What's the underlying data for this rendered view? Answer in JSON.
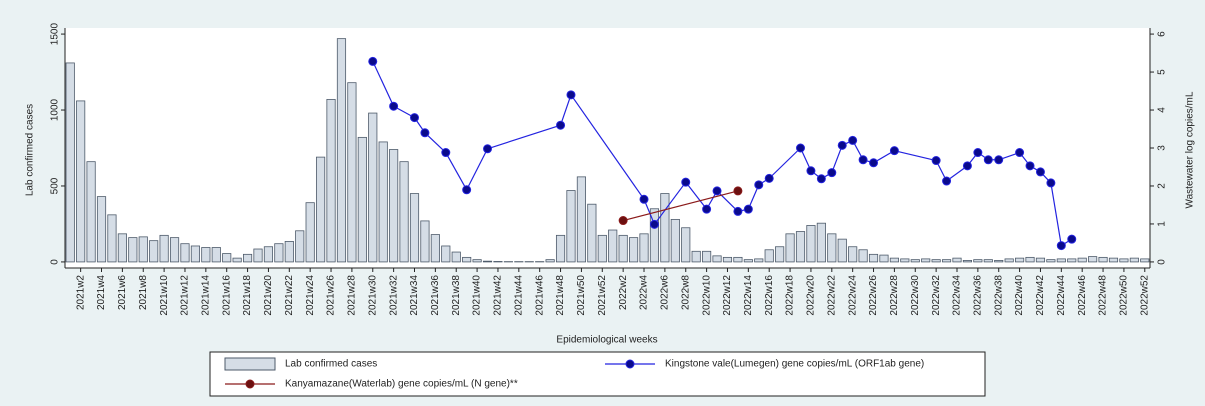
{
  "chart_data": {
    "type": "bar",
    "x_label": "Epidemiological weeks",
    "y_label": "Lab confirmed cases",
    "y2_label": "Wastewater log copies/mL",
    "categories": [
      null,
      "2021w2",
      null,
      "2021w4",
      null,
      "2021w6",
      null,
      "2021w8",
      null,
      "2021w10",
      null,
      "2021w12",
      null,
      "2021w14",
      null,
      "2021w16",
      null,
      "2021w18",
      null,
      "2021w20",
      null,
      "2021w22",
      null,
      "2021w24",
      null,
      "2021w26",
      null,
      "2021w28",
      null,
      "2021w30",
      null,
      "2021w32",
      null,
      "2021w34",
      null,
      "2021w36",
      null,
      "2021w38",
      null,
      "2021w40",
      null,
      "2021w42",
      null,
      "2021w44",
      null,
      "2021w46",
      null,
      "2021w48",
      null,
      "2021w50",
      null,
      "2021w52",
      null,
      "2022w2",
      null,
      "2022w4",
      null,
      "2022w6",
      null,
      "2022w8",
      null,
      "2022w10",
      null,
      "2022w12",
      null,
      "2022w14",
      null,
      "2022w16",
      null,
      "2022w18",
      null,
      "2022w20",
      null,
      "2022w22",
      null,
      "2022w24",
      null,
      "2022w26",
      null,
      "2022w28",
      null,
      "2022w30",
      null,
      "2022w32",
      null,
      "2022w34",
      null,
      "2022w36",
      null,
      "2022w38",
      null,
      "2022w40",
      null,
      "2022w42",
      null,
      "2022w44",
      null,
      "2022w46",
      null,
      "2022w48",
      null,
      "2022w50",
      null,
      "2022w52"
    ],
    "series": [
      {
        "name": "Lab confirmed cases",
        "type": "bar",
        "color": "#d5dde6",
        "values": [
          1310,
          1060,
          660,
          430,
          310,
          185,
          160,
          165,
          140,
          175,
          160,
          120,
          105,
          95,
          95,
          55,
          25,
          50,
          85,
          100,
          120,
          135,
          205,
          390,
          690,
          1070,
          1470,
          1180,
          820,
          980,
          790,
          740,
          660,
          450,
          270,
          180,
          105,
          65,
          30,
          15,
          5,
          3,
          2,
          2,
          2,
          2,
          15,
          175,
          470,
          560,
          380,
          175,
          210,
          175,
          160,
          185,
          350,
          450,
          280,
          225,
          70,
          70,
          40,
          30,
          30,
          15,
          20,
          80,
          100,
          185,
          200,
          240,
          255,
          185,
          150,
          100,
          80,
          50,
          45,
          25,
          20,
          15,
          20,
          15,
          15,
          25,
          10,
          15,
          15,
          10,
          20,
          25,
          30,
          25,
          15,
          20,
          20,
          25,
          35,
          30,
          25,
          20,
          25,
          20
        ]
      },
      {
        "name": "Kingstone vale(Lumegen) gene copies/mL (ORF1ab gene)",
        "type": "line",
        "axis": "y2",
        "color": "#2323e0",
        "values": [
          null,
          null,
          null,
          null,
          null,
          null,
          null,
          null,
          null,
          null,
          null,
          null,
          null,
          null,
          null,
          null,
          null,
          null,
          null,
          null,
          null,
          null,
          null,
          null,
          null,
          null,
          null,
          null,
          null,
          5.28,
          null,
          4.1,
          null,
          3.8,
          3.4,
          null,
          2.88,
          null,
          1.9,
          null,
          2.98,
          null,
          null,
          null,
          null,
          null,
          null,
          3.6,
          4.4,
          null,
          null,
          null,
          null,
          null,
          null,
          1.65,
          0.99,
          null,
          null,
          2.1,
          null,
          1.39,
          1.87,
          null,
          1.33,
          1.39,
          2.03,
          2.2,
          null,
          null,
          3.0,
          2.4,
          2.19,
          2.35,
          3.07,
          3.2,
          2.69,
          2.61,
          null,
          2.93,
          null,
          null,
          null,
          2.67,
          2.13,
          null,
          2.53,
          2.88,
          2.69,
          2.69,
          null,
          2.88,
          2.53,
          2.37,
          2.08,
          0.43,
          0.6,
          null,
          null,
          null,
          null,
          null,
          null,
          null
        ]
      },
      {
        "name": "Kanyamazane(Waterlab) gene copies/mL (N gene)**",
        "type": "line",
        "axis": "y2",
        "color": "#8b1a1a",
        "values": [
          null,
          null,
          null,
          null,
          null,
          null,
          null,
          null,
          null,
          null,
          null,
          null,
          null,
          null,
          null,
          null,
          null,
          null,
          null,
          null,
          null,
          null,
          null,
          null,
          null,
          null,
          null,
          null,
          null,
          null,
          null,
          null,
          null,
          null,
          null,
          null,
          null,
          null,
          null,
          null,
          null,
          null,
          null,
          null,
          null,
          null,
          null,
          null,
          null,
          null,
          null,
          null,
          null,
          1.09,
          null,
          null,
          null,
          null,
          null,
          null,
          null,
          null,
          null,
          null,
          1.87,
          null,
          null,
          null,
          null,
          null,
          null,
          null,
          null,
          null,
          null,
          null,
          null,
          null,
          null,
          null,
          null,
          null,
          null,
          null,
          null,
          null,
          null,
          null,
          null,
          null,
          null,
          null,
          null,
          null,
          null,
          null,
          null,
          null,
          null,
          null,
          null,
          null,
          null,
          null
        ]
      }
    ],
    "ylim": [
      -40,
      1540
    ],
    "yticks": [
      0,
      500,
      1000,
      1500
    ],
    "y2lim": [
      -0.16,
      6.16
    ],
    "y2ticks": [
      0,
      1,
      2,
      3,
      4,
      5,
      6
    ]
  }
}
